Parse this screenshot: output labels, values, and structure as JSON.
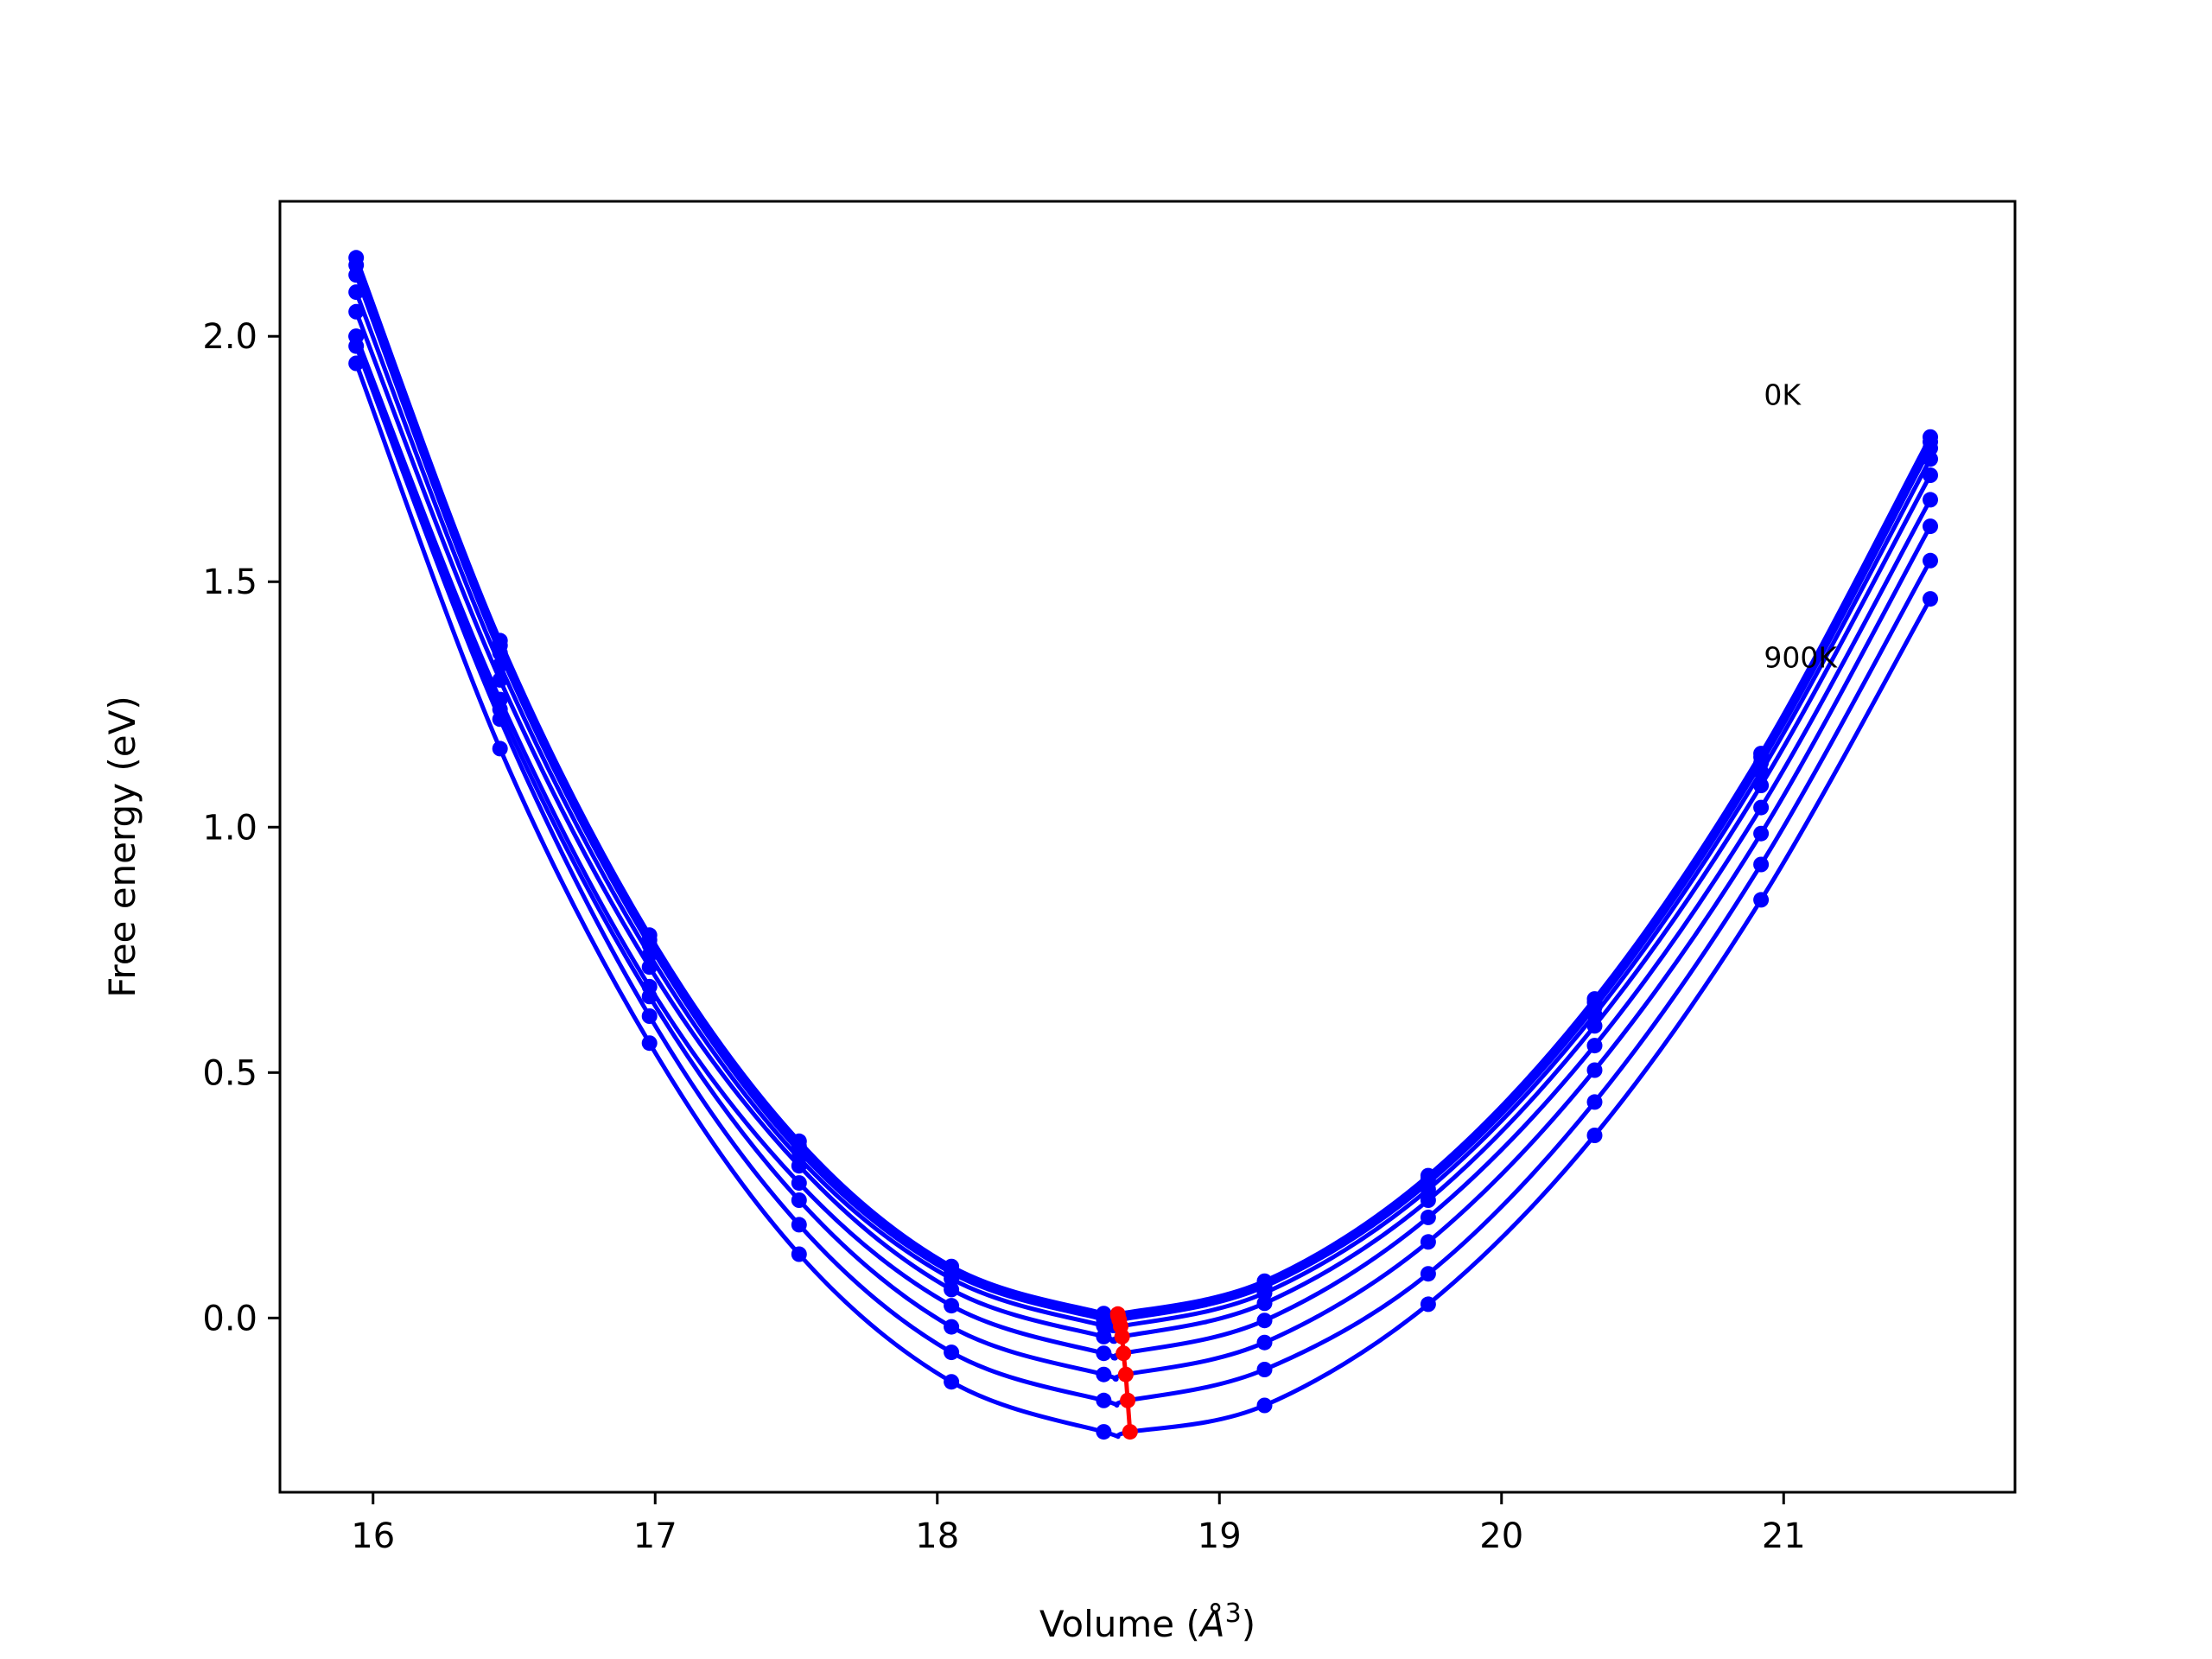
{
  "chart_data": {
    "type": "line",
    "title": "",
    "xlabel": "Volume (Å³)",
    "xlabel_parts": {
      "before": "Volume (",
      "symbol": "Å",
      "superscript": "3",
      "after": ")"
    },
    "ylabel": "Free energy (eV)",
    "xlim": [
      15.67,
      21.82
    ],
    "ylim": [
      -0.355,
      2.275
    ],
    "xticks": [
      16,
      17,
      18,
      19,
      20,
      21
    ],
    "xtick_labels": [
      "16",
      "17",
      "18",
      "19",
      "20",
      "21"
    ],
    "yticks": [
      0.0,
      0.5,
      1.0,
      1.5,
      2.0
    ],
    "ytick_labels": [
      "0.0",
      "0.5",
      "1.0",
      "1.5",
      "2.0"
    ],
    "grid": false,
    "legend": "none",
    "curve_color": "#0000ff",
    "min_color": "#ff0000",
    "x": [
      15.94,
      16.45,
      16.98,
      17.51,
      18.05,
      18.59,
      19.16,
      19.74,
      20.33,
      20.92,
      21.52
    ],
    "series": [
      {
        "values": [
          2.16,
          1.38,
          0.78,
          0.36,
          0.105,
          0.009,
          0.075,
          0.29,
          0.65,
          1.15,
          1.795
        ],
        "min": {
          "x": 18.64,
          "y": 0.008
        }
      },
      {
        "values": [
          2.145,
          1.37,
          0.77,
          0.35,
          0.1,
          0.005,
          0.071,
          0.284,
          0.643,
          1.143,
          1.785
        ],
        "min": {
          "x": 18.641,
          "y": 0.004
        }
      },
      {
        "values": [
          2.125,
          1.355,
          0.76,
          0.34,
          0.092,
          -0.003,
          0.064,
          0.275,
          0.633,
          1.131,
          1.772
        ],
        "min": {
          "x": 18.645,
          "y": -0.004
        }
      },
      {
        "values": [
          2.09,
          1.33,
          0.74,
          0.326,
          0.08,
          -0.016,
          0.051,
          0.262,
          0.618,
          1.113,
          1.75
        ],
        "min": {
          "x": 18.65,
          "y": -0.017
        }
      },
      {
        "values": [
          2.05,
          1.3,
          0.715,
          0.31,
          0.058,
          -0.038,
          0.03,
          0.24,
          0.595,
          1.085,
          1.717
        ],
        "min": {
          "x": 18.655,
          "y": -0.038
        }
      },
      {
        "values": [
          2.0,
          1.26,
          0.675,
          0.275,
          0.025,
          -0.072,
          -0.005,
          0.205,
          0.555,
          1.04,
          1.667
        ],
        "min": {
          "x": 18.66,
          "y": -0.072
        }
      },
      {
        "values": [
          2.0,
          1.24,
          0.655,
          0.24,
          -0.018,
          -0.115,
          -0.05,
          0.155,
          0.505,
          0.987,
          1.613
        ],
        "min": {
          "x": 18.668,
          "y": -0.115
        }
      },
      {
        "values": [
          1.98,
          1.22,
          0.615,
          0.19,
          -0.07,
          -0.168,
          -0.105,
          0.09,
          0.44,
          0.924,
          1.543
        ],
        "min": {
          "x": 18.675,
          "y": -0.168
        }
      },
      {
        "values": [
          1.945,
          1.16,
          0.56,
          0.13,
          -0.13,
          -0.232,
          -0.178,
          0.028,
          0.372,
          0.852,
          1.465
        ],
        "min": {
          "x": 18.683,
          "y": -0.232
        }
      }
    ],
    "annotations": [
      {
        "text": "0K",
        "x": 20.93,
        "y": 1.86
      },
      {
        "text": "900K",
        "x": 20.93,
        "y": 1.325
      }
    ]
  }
}
